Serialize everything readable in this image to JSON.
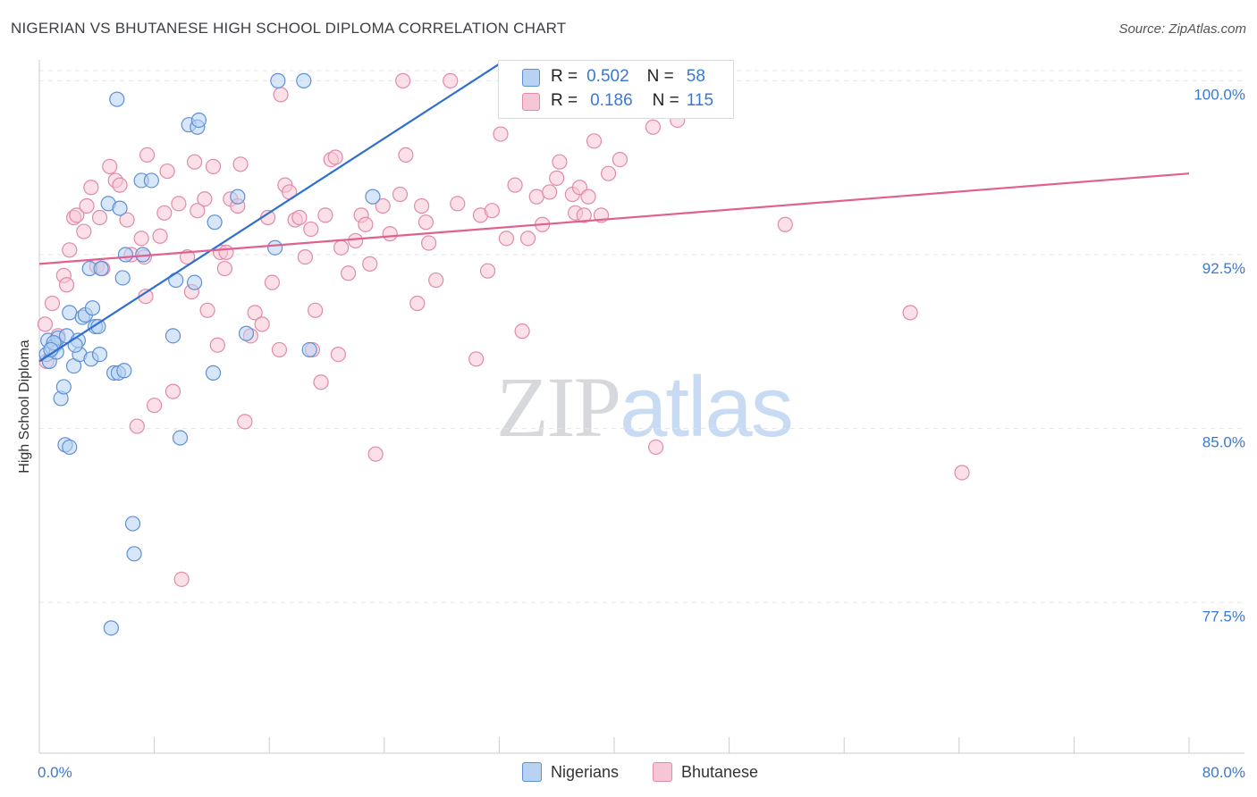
{
  "header": {
    "title": "NIGERIAN VS BHUTANESE HIGH SCHOOL DIPLOMA CORRELATION CHART",
    "source": "Source: ZipAtlas.com"
  },
  "watermark": {
    "zip": "ZIP",
    "atlas": "atlas"
  },
  "legend": {
    "rows": [
      {
        "r_label": "R =",
        "r_value": "0.502",
        "n_label": "N =",
        "n_value": "58"
      },
      {
        "r_label": "R =",
        "r_value": "0.186",
        "n_label": "N =",
        "n_value": "115"
      }
    ],
    "series": [
      "Nigerians",
      "Bhutanese"
    ]
  },
  "colors": {
    "nigerians_fill": "#b7d2f3",
    "nigerians_stroke": "#5d90d6",
    "nigerians_line": "#2f6fcf",
    "bhutanese_fill": "#f7c6d6",
    "bhutanese_stroke": "#e18aa9",
    "bhutanese_line": "#e0608f",
    "axis_label": "#3a78d4",
    "grid": "#e3e5e8"
  },
  "chart_data": {
    "type": "scatter",
    "title": "NIGERIAN VS BHUTANESE HIGH SCHOOL DIPLOMA CORRELATION CHART",
    "xlabel": "",
    "ylabel": "High School Diploma",
    "xlim": [
      0,
      80
    ],
    "ylim": [
      71.0,
      100.9
    ],
    "x_tick_labels": [
      "0.0%",
      "80.0%"
    ],
    "y_ticks": [
      77.5,
      85.0,
      92.5,
      100.0
    ],
    "y_tick_labels": [
      "77.5%",
      "85.0%",
      "92.5%",
      "100.0%"
    ],
    "series": [
      {
        "name": "Nigerians",
        "r": 0.502,
        "n": 58,
        "trend": {
          "x": [
            0.0,
            32.2
          ],
          "y": [
            87.9,
            100.8
          ]
        },
        "points": [
          [
            0.5,
            88.2
          ],
          [
            0.6,
            88.8
          ],
          [
            0.7,
            87.9
          ],
          [
            1.1,
            88.6
          ],
          [
            0.9,
            88.5
          ],
          [
            1.3,
            88.9
          ],
          [
            1.5,
            86.3
          ],
          [
            1.7,
            86.8
          ],
          [
            1.8,
            84.3
          ],
          [
            2.1,
            84.2
          ],
          [
            1.9,
            89.0
          ],
          [
            2.1,
            90.0
          ],
          [
            2.4,
            87.7
          ],
          [
            2.7,
            88.8
          ],
          [
            2.8,
            88.2
          ],
          [
            3.0,
            89.8
          ],
          [
            3.2,
            89.9
          ],
          [
            3.6,
            88.0
          ],
          [
            3.7,
            90.2
          ],
          [
            3.5,
            91.9
          ],
          [
            3.9,
            89.4
          ],
          [
            4.1,
            89.4
          ],
          [
            4.3,
            91.9
          ],
          [
            5.2,
            87.4
          ],
          [
            5.5,
            87.4
          ],
          [
            5.9,
            87.5
          ],
          [
            6.0,
            92.5
          ],
          [
            5.8,
            91.5
          ],
          [
            7.2,
            92.5
          ],
          [
            4.8,
            94.7
          ],
          [
            5.6,
            94.5
          ],
          [
            5.4,
            99.2
          ],
          [
            7.1,
            95.7
          ],
          [
            7.8,
            95.7
          ],
          [
            9.3,
            89.0
          ],
          [
            9.5,
            91.4
          ],
          [
            9.8,
            84.6
          ],
          [
            10.8,
            91.3
          ],
          [
            10.4,
            98.1
          ],
          [
            11.0,
            98.0
          ],
          [
            11.1,
            98.3
          ],
          [
            12.1,
            87.4
          ],
          [
            12.2,
            93.9
          ],
          [
            13.8,
            95.0
          ],
          [
            14.4,
            89.1
          ],
          [
            16.4,
            92.8
          ],
          [
            16.6,
            100.0
          ],
          [
            18.4,
            100.0
          ],
          [
            18.8,
            88.4
          ],
          [
            23.2,
            95.0
          ],
          [
            6.5,
            80.9
          ],
          [
            6.6,
            79.6
          ],
          [
            5.0,
            76.4
          ],
          [
            4.2,
            88.2
          ],
          [
            2.5,
            88.6
          ],
          [
            1.2,
            88.3
          ],
          [
            1.0,
            88.7
          ],
          [
            0.8,
            88.4
          ]
        ]
      },
      {
        "name": "Bhutanese",
        "r": 0.186,
        "n": 115,
        "trend": {
          "x": [
            0.0,
            80.0
          ],
          "y": [
            92.1,
            96.0
          ]
        },
        "points": [
          [
            0.4,
            89.5
          ],
          [
            0.5,
            87.9
          ],
          [
            0.9,
            90.4
          ],
          [
            1.3,
            89.0
          ],
          [
            1.7,
            91.6
          ],
          [
            1.9,
            91.2
          ],
          [
            2.1,
            92.7
          ],
          [
            2.4,
            94.1
          ],
          [
            2.6,
            94.2
          ],
          [
            3.1,
            93.5
          ],
          [
            3.3,
            94.6
          ],
          [
            3.6,
            95.4
          ],
          [
            4.0,
            92.0
          ],
          [
            4.2,
            94.1
          ],
          [
            4.4,
            91.9
          ],
          [
            4.9,
            96.3
          ],
          [
            5.3,
            95.7
          ],
          [
            5.6,
            95.5
          ],
          [
            6.1,
            94.0
          ],
          [
            6.4,
            92.5
          ],
          [
            6.8,
            85.1
          ],
          [
            7.1,
            93.2
          ],
          [
            7.4,
            90.7
          ],
          [
            7.5,
            96.8
          ],
          [
            8.0,
            86.0
          ],
          [
            8.4,
            93.3
          ],
          [
            8.7,
            94.3
          ],
          [
            8.9,
            96.1
          ],
          [
            9.3,
            86.6
          ],
          [
            9.7,
            94.7
          ],
          [
            9.9,
            78.5
          ],
          [
            10.3,
            92.4
          ],
          [
            10.6,
            90.9
          ],
          [
            10.8,
            96.5
          ],
          [
            11.0,
            94.4
          ],
          [
            11.5,
            94.9
          ],
          [
            11.7,
            90.1
          ],
          [
            12.1,
            96.3
          ],
          [
            12.4,
            88.6
          ],
          [
            12.6,
            92.6
          ],
          [
            12.9,
            91.9
          ],
          [
            13.3,
            94.9
          ],
          [
            13.8,
            94.6
          ],
          [
            14.0,
            96.4
          ],
          [
            14.3,
            85.3
          ],
          [
            14.7,
            89.0
          ],
          [
            15.0,
            90.0
          ],
          [
            15.5,
            89.5
          ],
          [
            15.9,
            94.1
          ],
          [
            16.2,
            91.3
          ],
          [
            16.7,
            88.4
          ],
          [
            16.8,
            99.4
          ],
          [
            17.1,
            95.5
          ],
          [
            17.4,
            95.2
          ],
          [
            17.8,
            94.0
          ],
          [
            18.1,
            94.1
          ],
          [
            18.5,
            92.4
          ],
          [
            18.9,
            93.6
          ],
          [
            19.0,
            88.4
          ],
          [
            19.2,
            90.1
          ],
          [
            19.6,
            87.0
          ],
          [
            19.9,
            94.2
          ],
          [
            20.3,
            96.6
          ],
          [
            20.6,
            96.7
          ],
          [
            20.8,
            88.2
          ],
          [
            21.0,
            92.8
          ],
          [
            21.5,
            91.7
          ],
          [
            22.0,
            93.1
          ],
          [
            22.4,
            94.2
          ],
          [
            22.7,
            93.8
          ],
          [
            23.0,
            92.1
          ],
          [
            23.4,
            83.9
          ],
          [
            23.9,
            94.6
          ],
          [
            24.4,
            93.4
          ],
          [
            25.3,
            100.0
          ],
          [
            25.5,
            96.8
          ],
          [
            26.3,
            90.4
          ],
          [
            26.6,
            94.6
          ],
          [
            26.9,
            93.9
          ],
          [
            27.1,
            93.0
          ],
          [
            27.6,
            91.4
          ],
          [
            28.6,
            100.0
          ],
          [
            29.1,
            94.7
          ],
          [
            30.4,
            88.0
          ],
          [
            30.7,
            94.2
          ],
          [
            31.2,
            91.8
          ],
          [
            31.5,
            94.4
          ],
          [
            32.1,
            97.7
          ],
          [
            32.5,
            93.2
          ],
          [
            33.1,
            95.5
          ],
          [
            33.6,
            89.2
          ],
          [
            34.0,
            93.2
          ],
          [
            34.6,
            95.0
          ],
          [
            35.0,
            93.8
          ],
          [
            35.5,
            95.2
          ],
          [
            36.0,
            95.8
          ],
          [
            36.2,
            96.5
          ],
          [
            37.1,
            95.1
          ],
          [
            37.3,
            94.3
          ],
          [
            37.6,
            95.4
          ],
          [
            37.9,
            94.2
          ],
          [
            38.2,
            95.0
          ],
          [
            38.6,
            97.4
          ],
          [
            39.1,
            94.2
          ],
          [
            39.6,
            96.0
          ],
          [
            40.4,
            96.6
          ],
          [
            42.7,
            98.0
          ],
          [
            42.9,
            84.2
          ],
          [
            44.4,
            98.3
          ],
          [
            51.9,
            93.8
          ],
          [
            60.6,
            90.0
          ],
          [
            64.2,
            83.1
          ],
          [
            7.3,
            92.4
          ],
          [
            13.0,
            92.6
          ],
          [
            25.1,
            95.1
          ]
        ]
      }
    ]
  }
}
